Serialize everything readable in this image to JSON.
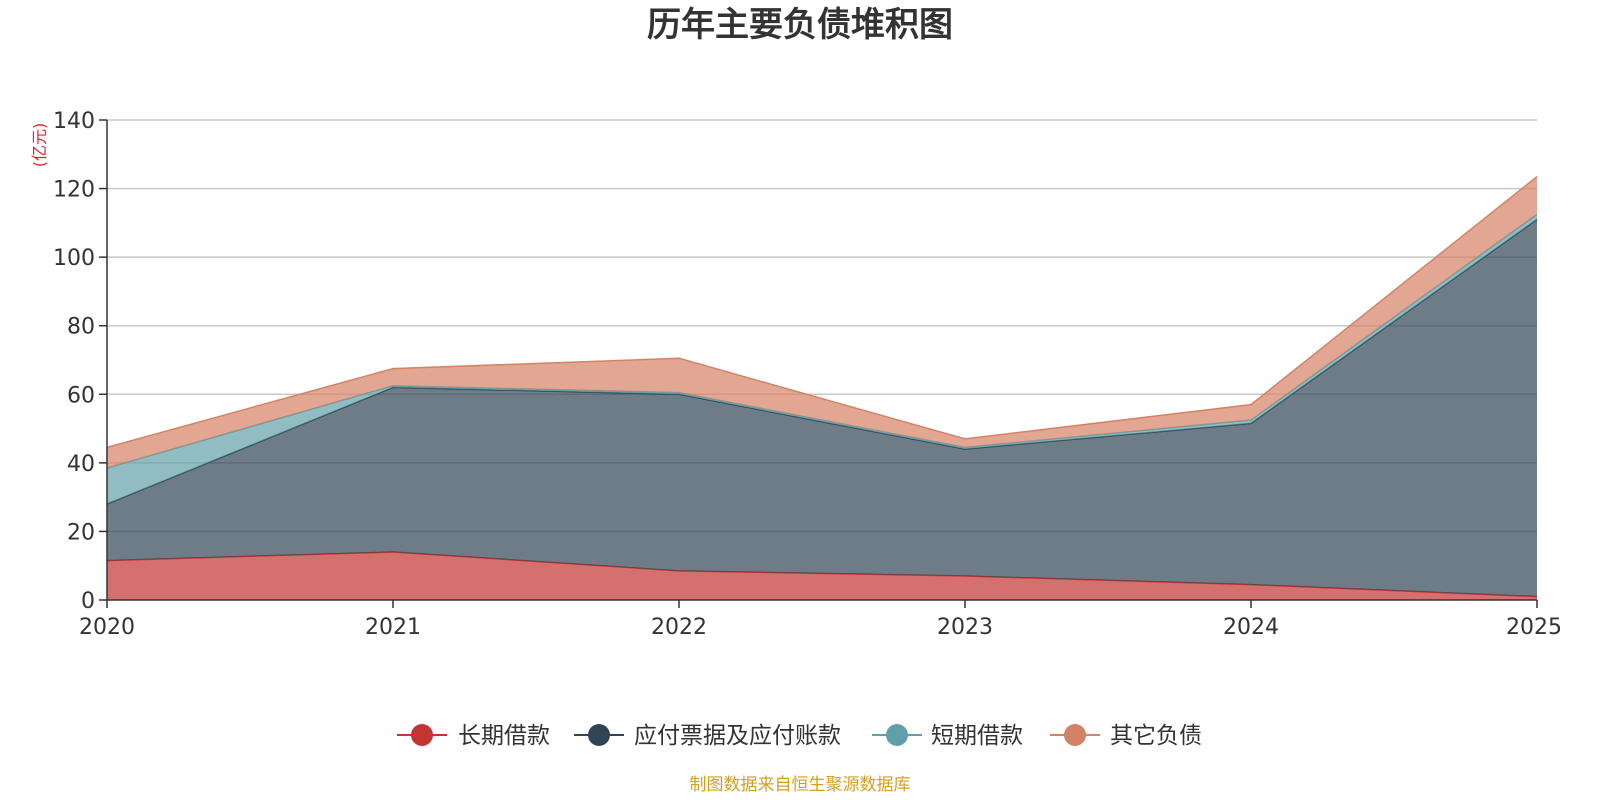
{
  "chart_data": {
    "type": "area",
    "stacked": true,
    "title": "历年主要负债堆积图",
    "unit": "(亿元)",
    "x": [
      "2020",
      "2021",
      "2022",
      "2023",
      "2024",
      "2025"
    ],
    "ylim": [
      0,
      140
    ],
    "yticks": [
      0,
      20,
      40,
      60,
      80,
      100,
      120,
      140
    ],
    "grid": true,
    "legend_position": "bottom",
    "series": [
      {
        "name": "长期借款",
        "color": "#c23531",
        "values": [
          11.5,
          14,
          8.5,
          7,
          4.5,
          1
        ]
      },
      {
        "name": "应付票据及应付账款",
        "color": "#2f4554",
        "values": [
          16.5,
          48,
          51.5,
          37,
          47,
          110
        ]
      },
      {
        "name": "短期借款",
        "color": "#61a0a8",
        "values": [
          10.5,
          0.5,
          0.5,
          0.5,
          1,
          1.5
        ]
      },
      {
        "name": "其它负债",
        "color": "#d48265",
        "values": [
          6,
          5,
          10,
          2.5,
          4.5,
          11
        ]
      }
    ],
    "source": "制图数据来自恒生聚源数据库"
  }
}
